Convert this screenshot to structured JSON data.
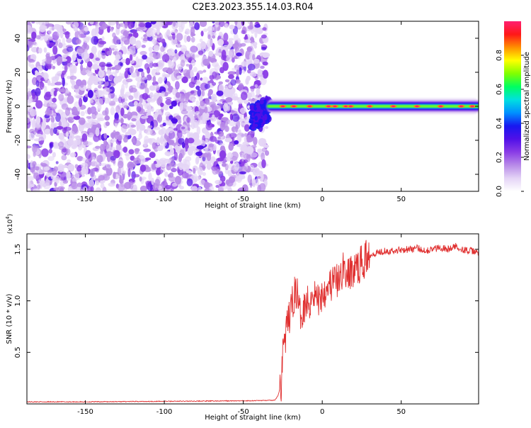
{
  "title": "C2E3.2023.355.14.03.R04",
  "colors": {
    "snr_line": "#e03030",
    "frame": "#000000",
    "colormap": [
      "#ffffff",
      "#e4d4f6",
      "#b88ae8",
      "#8a3ce6",
      "#5010e8",
      "#1818f0",
      "#0090ff",
      "#00e0e0",
      "#00ff60",
      "#80ff00",
      "#ffff00",
      "#ff9000",
      "#ff1818",
      "#ff2070"
    ]
  },
  "chart_data": [
    {
      "type": "heatmap",
      "xlabel": "Height of straight line (km)",
      "ylabel": "Frequency (Hz)",
      "xlim": [
        -187,
        99
      ],
      "ylim": [
        -50,
        50
      ],
      "x_ticks": [
        -150,
        -100,
        -50,
        0,
        50
      ],
      "y_ticks": [
        40,
        20,
        0,
        -20,
        -40
      ],
      "noise_region_x": [
        -187,
        -35
      ],
      "signal_region_x": [
        -35,
        99
      ],
      "signal_frequency_hz": 0,
      "grid": false,
      "colorbar": {
        "label": "Normalized spectral amplitude",
        "range": [
          0.0,
          1.0
        ],
        "ticks": [
          "0.0",
          "0.2",
          "0.4",
          "0.6",
          "0.8"
        ]
      }
    },
    {
      "type": "line",
      "xlabel": "Height of straight line (km)",
      "ylabel": "SNR (10 * v/v)",
      "y_multiplier": "(x10",
      "y_multiplier_exp": "4",
      "y_multiplier_close": ")",
      "xlim": [
        -187,
        99
      ],
      "ylim": [
        0,
        16500
      ],
      "x_ticks": [
        -150,
        -100,
        -50,
        0,
        50
      ],
      "y_ticks": [
        0.5,
        1.0,
        1.5
      ],
      "y_tick_labels": [
        "0.5",
        "1.0",
        "1.5"
      ],
      "grid": false,
      "series": [
        {
          "x": [
            -187,
            -150,
            -100,
            -50,
            -30,
            -28,
            -26,
            -25,
            -24,
            -22,
            -20,
            -18,
            -16,
            -14,
            -12,
            -10,
            -8,
            -6,
            -4,
            -2,
            0,
            2,
            4,
            6,
            8,
            10,
            12,
            14,
            16,
            18,
            20,
            22,
            24,
            26,
            28,
            30,
            35,
            40,
            45,
            50,
            55,
            60,
            65,
            70,
            75,
            80,
            85,
            90,
            95,
            99
          ],
          "y": [
            200,
            200,
            250,
            300,
            350,
            800,
            2000,
            5500,
            6000,
            7500,
            9000,
            10500,
            11000,
            8500,
            9500,
            10000,
            9800,
            11000,
            10500,
            10000,
            10800,
            11200,
            11800,
            11500,
            12200,
            11600,
            12500,
            13500,
            12200,
            12800,
            13000,
            13200,
            13500,
            13800,
            14200,
            14500,
            14700,
            14900,
            14800,
            15000,
            15000,
            15100,
            14900,
            15000,
            15200,
            15000,
            15300,
            14900,
            14800,
            14700
          ]
        }
      ]
    }
  ]
}
